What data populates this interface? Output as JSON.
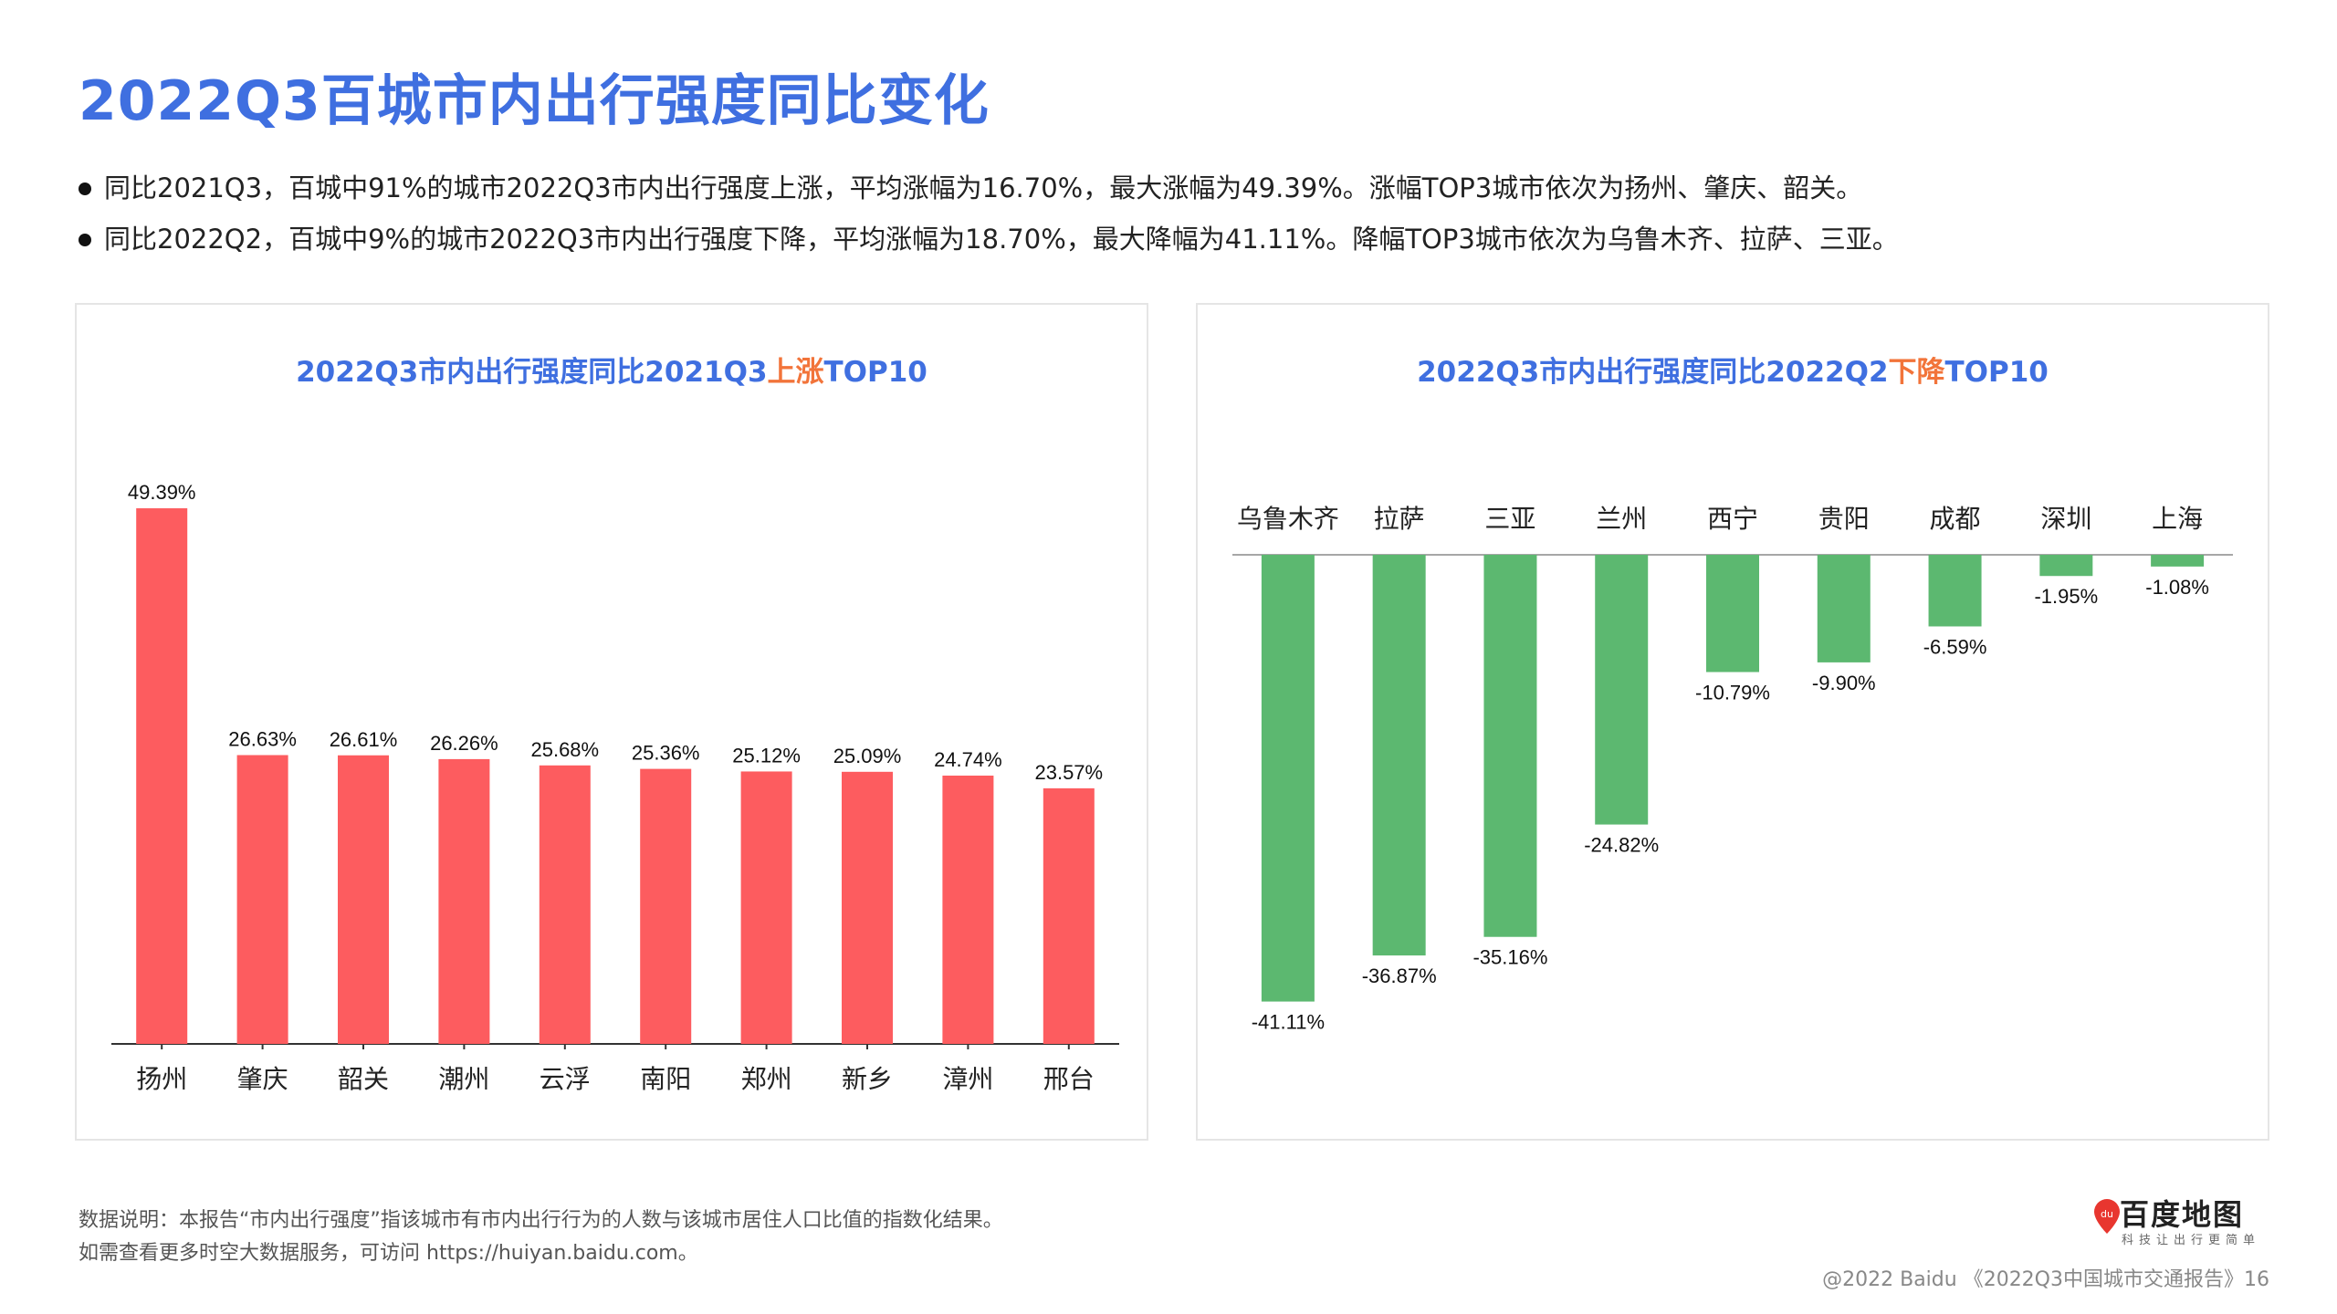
{
  "page": {
    "title": "2022Q3百城市内出行强度同比变化",
    "bullets": [
      "同比2021Q3，百城中91%的城市2022Q3市内出行强度上涨，平均涨幅为16.70%，最大涨幅为49.39%。涨幅TOP3城市依次为扬州、肇庆、韶关。",
      "同比2022Q2，百城中9%的城市2022Q3市内出行强度下降，平均涨幅为18.70%，最大降幅为41.11%。降幅TOP3城市依次为乌鲁木齐、拉萨、三亚。"
    ],
    "left_title": {
      "prefix": "2022Q3市内出行强度同比2021Q3",
      "highlight": "上涨",
      "suffix": "TOP10"
    },
    "right_title": {
      "prefix": "2022Q3市内出行强度同比2022Q2",
      "highlight": "下降",
      "suffix": "TOP10"
    },
    "footnote_1": "数据说明：本报告“市内出行强度”指该城市有市内出行行为的人数与该城市居住人口比值的指数化结果。",
    "footnote_2": "如需查看更多时空大数据服务，可访问 https://huiyan.baidu.com。",
    "footer": "@2022 Baidu 《2022Q3中国城市交通报告》16",
    "logo_text": "百度地图",
    "logo_badge": "du",
    "logo_sub": "科技让出行更简单"
  },
  "colors": {
    "title": "#3f6fe0",
    "highlight": "#f2743a",
    "rise_bar": "#fd5c5f",
    "fall_bar": "#5cb870",
    "logo_red": "#e8362f"
  },
  "chart_data": [
    {
      "type": "bar",
      "title": "2022Q3市内出行强度同比2021Q3上涨TOP10",
      "categories": [
        "扬州",
        "肇庆",
        "韶关",
        "潮州",
        "云浮",
        "南阳",
        "郑州",
        "新乡",
        "漳州",
        "邢台"
      ],
      "values": [
        49.39,
        26.63,
        26.61,
        26.26,
        25.68,
        25.36,
        25.12,
        25.09,
        24.74,
        23.57
      ],
      "labels": [
        "49.39%",
        "26.63%",
        "26.61%",
        "26.26%",
        "25.68%",
        "25.36%",
        "25.12%",
        "25.09%",
        "24.74%",
        "23.57%"
      ],
      "unit": "%",
      "ylim": [
        0,
        52
      ],
      "grid": false,
      "color": "#fd5c5f"
    },
    {
      "type": "bar",
      "title": "2022Q3市内出行强度同比2022Q2下降TOP10",
      "categories": [
        "乌鲁木齐",
        "拉萨",
        "三亚",
        "兰州",
        "西宁",
        "贵阳",
        "成都",
        "深圳",
        "上海"
      ],
      "values": [
        -41.11,
        -36.87,
        -35.16,
        -24.82,
        -10.79,
        -9.9,
        -6.59,
        -1.95,
        -1.08
      ],
      "labels": [
        "-41.11%",
        "-36.87%",
        "-35.16%",
        "-24.82%",
        "-10.79%",
        "-9.90%",
        "-6.59%",
        "-1.95%",
        "-1.08%"
      ],
      "unit": "%",
      "ylim": [
        -44,
        0
      ],
      "grid": false,
      "color": "#5cb870"
    }
  ]
}
